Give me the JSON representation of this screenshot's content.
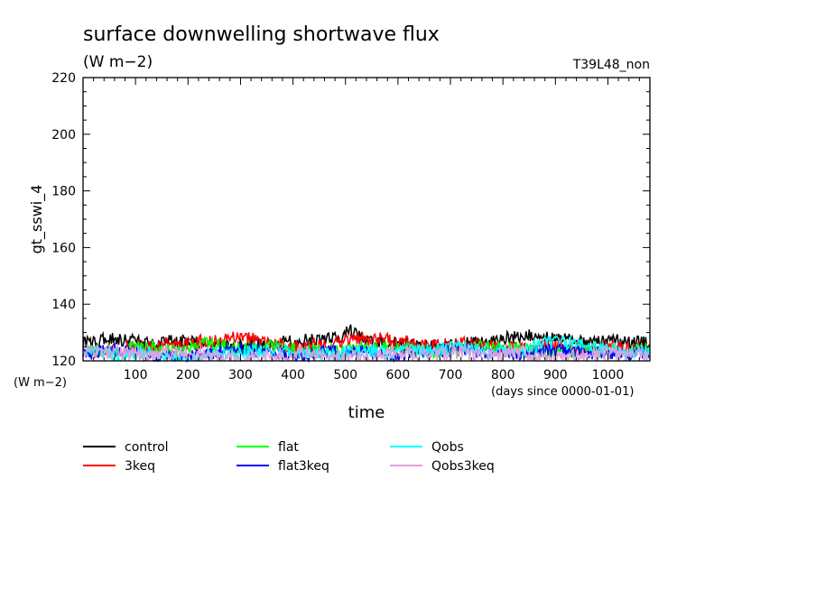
{
  "chart_data": {
    "type": "line",
    "title": "surface downwelling shortwave flux",
    "units": "(W m−2)",
    "run_label": "T39L48_non",
    "ylabel": "gt_sswi_4",
    "yunits": "(W m−2)",
    "xlabel": "time",
    "xunits": "(days since 0000-01-01)",
    "xlim": [
      0,
      1080
    ],
    "ylim": [
      120,
      220
    ],
    "xticks": [
      100,
      200,
      300,
      400,
      500,
      600,
      700,
      800,
      900,
      1000
    ],
    "yticks": [
      120,
      140,
      160,
      180,
      200,
      220
    ],
    "grid": false,
    "legend_position": "bottom",
    "series": [
      {
        "name": "control",
        "color": "#000000",
        "x": [
          0,
          60,
          120,
          180,
          240,
          300,
          360,
          420,
          480,
          510,
          540,
          600,
          660,
          720,
          780,
          840,
          900,
          960,
          1020,
          1080
        ],
        "values": [
          126,
          128,
          126,
          127,
          126,
          125,
          126,
          127,
          128,
          131,
          127,
          126,
          125,
          126,
          127,
          129,
          128,
          126,
          127,
          126
        ]
      },
      {
        "name": "3keq",
        "color": "#ff0000",
        "x": [
          0,
          60,
          120,
          180,
          240,
          300,
          360,
          420,
          480,
          540,
          600,
          660,
          720,
          780,
          840,
          900,
          960,
          1020,
          1080
        ],
        "values": [
          123,
          124,
          125,
          126,
          127,
          129,
          126,
          125,
          127,
          128,
          127,
          125,
          126,
          125,
          124,
          126,
          124,
          125,
          124
        ]
      },
      {
        "name": "flat",
        "color": "#00ff00",
        "x": [
          0,
          60,
          120,
          180,
          240,
          300,
          360,
          420,
          480,
          540,
          600,
          660,
          720,
          780,
          840,
          900,
          960,
          1020,
          1080
        ],
        "values": [
          124,
          123,
          125,
          124,
          126,
          124,
          125,
          124,
          123,
          125,
          124,
          123,
          124,
          125,
          124,
          123,
          124,
          123,
          124
        ]
      },
      {
        "name": "flat3keq",
        "color": "#0000ff",
        "x": [
          0,
          60,
          120,
          180,
          240,
          300,
          360,
          420,
          480,
          540,
          600,
          660,
          720,
          780,
          840,
          900,
          960,
          1020,
          1080
        ],
        "values": [
          122,
          124,
          122,
          121,
          123,
          124,
          123,
          122,
          124,
          123,
          122,
          123,
          124,
          123,
          122,
          124,
          123,
          122,
          123
        ]
      },
      {
        "name": "Qobs",
        "color": "#00ffff",
        "x": [
          0,
          60,
          120,
          180,
          240,
          300,
          360,
          420,
          480,
          540,
          600,
          660,
          720,
          780,
          840,
          900,
          960,
          1020,
          1080
        ],
        "values": [
          123,
          122,
          123,
          121,
          122,
          123,
          124,
          123,
          122,
          124,
          123,
          124,
          125,
          123,
          124,
          127,
          125,
          124,
          123
        ]
      },
      {
        "name": "Qobs3keq",
        "color": "#e0a0e0",
        "x": [
          0,
          60,
          120,
          180,
          240,
          300,
          360,
          420,
          480,
          540,
          600,
          660,
          720,
          780,
          840,
          900,
          960,
          1020,
          1080
        ],
        "values": [
          124,
          123,
          122,
          123,
          122,
          121,
          122,
          123,
          122,
          121,
          123,
          122,
          123,
          122,
          123,
          121,
          122,
          123,
          122
        ]
      }
    ]
  }
}
